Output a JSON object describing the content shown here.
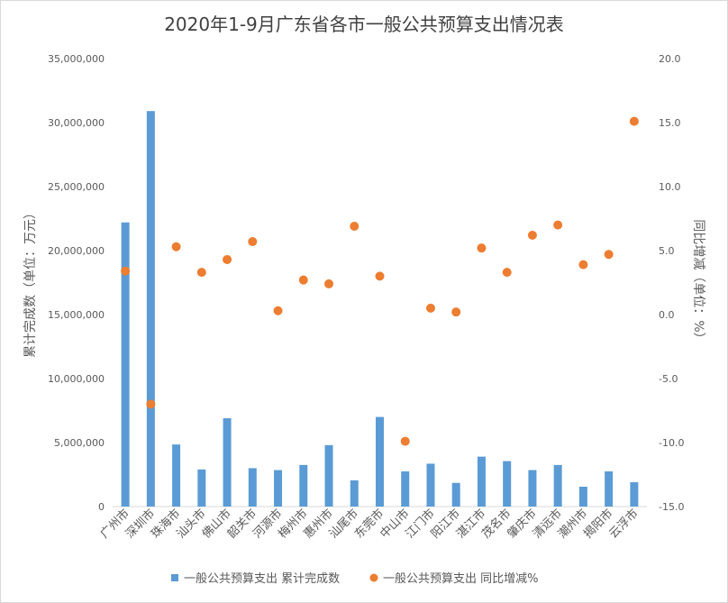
{
  "chart_data": {
    "type": "bar",
    "title": "2020年1-9月广东省各市一般公共预算支出情况表",
    "ylabel": "累计完成数（单位：万元）",
    "y2label": "同比增减（单位：%）",
    "ylim": [
      0,
      35000000
    ],
    "y2lim": [
      -15,
      20
    ],
    "yticks": [
      "0",
      "5,000,000",
      "10,000,000",
      "15,000,000",
      "20,000,000",
      "25,000,000",
      "30,000,000",
      "35,000,000"
    ],
    "y2ticks": [
      "-15.0",
      "-10.0",
      "-5.0",
      "0.0",
      "5.0",
      "10.0",
      "15.0",
      "20.0"
    ],
    "categories": [
      "广州市",
      "深圳市",
      "珠海市",
      "汕头市",
      "佛山市",
      "韶关市",
      "河源市",
      "梅州市",
      "惠州市",
      "汕尾市",
      "东莞市",
      "中山市",
      "江门市",
      "阳江市",
      "湛江市",
      "茂名市",
      "肇庆市",
      "清远市",
      "潮州市",
      "揭阳市",
      "云浮市"
    ],
    "series": [
      {
        "name": "一般公共预算支出 累计完成数",
        "kind": "bar",
        "axis": "left",
        "color": "#5b9bd5",
        "values": [
          22200000,
          30900000,
          4850000,
          2900000,
          6900000,
          3000000,
          2850000,
          3250000,
          4800000,
          2050000,
          7000000,
          2750000,
          3350000,
          1850000,
          3900000,
          3550000,
          2850000,
          3250000,
          1550000,
          2750000,
          1900000
        ]
      },
      {
        "name": "一般公共预算支出 同比增减%",
        "kind": "scatter",
        "axis": "right",
        "color": "#ed7d31",
        "values": [
          3.4,
          -7.0,
          5.3,
          3.3,
          4.3,
          5.7,
          0.3,
          2.7,
          2.4,
          6.9,
          3.0,
          -9.9,
          0.5,
          0.2,
          5.2,
          3.3,
          6.2,
          7.0,
          3.9,
          4.7,
          15.1
        ]
      }
    ],
    "grid": false,
    "legend": "bottom"
  }
}
